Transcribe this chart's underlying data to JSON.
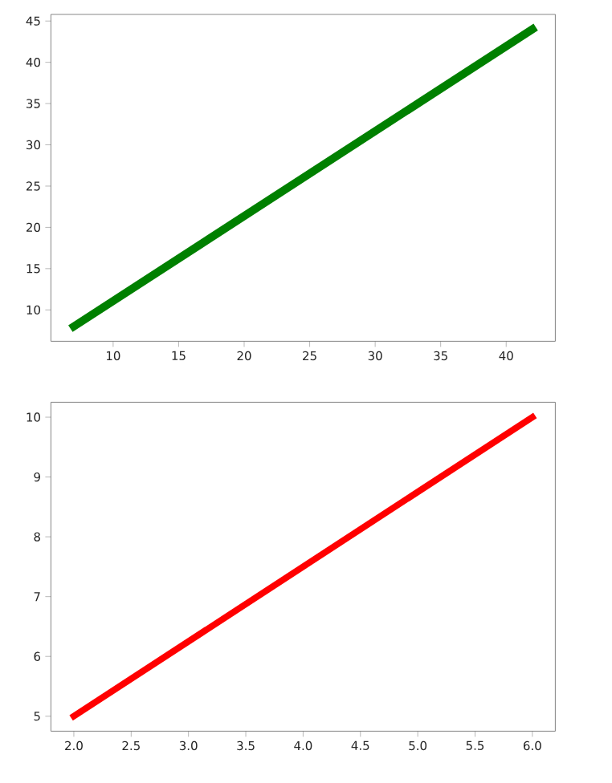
{
  "chart_data": [
    {
      "type": "line",
      "x": [
        7,
        42
      ],
      "values": [
        8,
        44
      ],
      "color": "#008000",
      "xlim": [
        5.25,
        43.75
      ],
      "ylim": [
        6.2,
        45.8
      ],
      "xticks": [
        10,
        15,
        20,
        25,
        30,
        35,
        40
      ],
      "yticks": [
        10,
        15,
        20,
        25,
        30,
        35,
        40,
        45
      ]
    },
    {
      "type": "line",
      "x": [
        2,
        6
      ],
      "values": [
        5,
        10
      ],
      "color": "#ff0000",
      "xlim": [
        1.8,
        6.2
      ],
      "ylim": [
        4.75,
        10.25
      ],
      "xticks": [
        {
          "value": 2,
          "label": "2.0"
        },
        {
          "value": 2.5,
          "label": "2.5"
        },
        {
          "value": 3,
          "label": "3.0"
        },
        {
          "value": 3.5,
          "label": "3.5"
        },
        {
          "value": 4,
          "label": "4.0"
        },
        {
          "value": 4.5,
          "label": "4.5"
        },
        {
          "value": 5,
          "label": "5.0"
        },
        {
          "value": 5.5,
          "label": "5.5"
        },
        {
          "value": 6,
          "label": "6.0"
        }
      ],
      "yticks": [
        5,
        6,
        7,
        8,
        9,
        10
      ]
    }
  ]
}
